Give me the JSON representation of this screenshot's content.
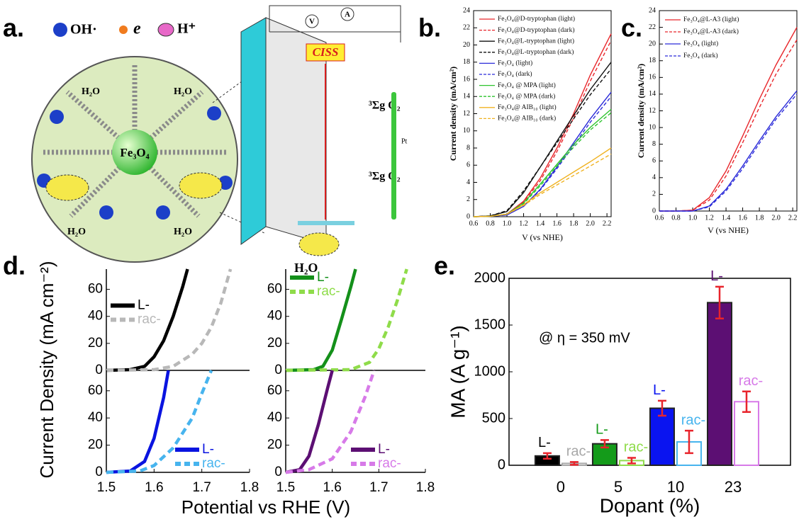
{
  "panel_labels": [
    "a.",
    "b.",
    "c.",
    "d.",
    "e."
  ],
  "diagram": {
    "legend": [
      "OH·",
      "e",
      "H⁺"
    ],
    "core": "Fe₃O₄",
    "water": "H₂O",
    "ciss": "CISS",
    "oxygen": "³Σg O₂",
    "meters": [
      "V",
      "A"
    ],
    "electrode": "Pt"
  },
  "panel_d_axes": {
    "ylabel": "Current Density (mA cm⁻²)",
    "xlabel": "Potential vs RHE (V)"
  },
  "chart_data": [
    {
      "type": "line",
      "ylabel": "Current density (mA/cm²)",
      "xlabel": "V (vs NHE)",
      "x": [
        0.6,
        0.8,
        1.0,
        1.2,
        1.4,
        1.6,
        1.8,
        2.0,
        2.25
      ],
      "xlim": [
        0.6,
        2.25
      ],
      "ylim": [
        0,
        24
      ],
      "xticks": [
        0.6,
        0.8,
        {
          "value": 1,
          "label": "1.0"
        },
        1.2,
        1.4,
        1.6,
        1.8,
        {
          "value": 2,
          "label": "2.0"
        },
        2.2
      ],
      "yticks": [
        0,
        2,
        4,
        6,
        8,
        10,
        12,
        14,
        16,
        18,
        20,
        22,
        24
      ],
      "legend": "upper left",
      "series": [
        {
          "name": "Fe₃O₄@D-tryptophan (light)",
          "color": "#e8262b",
          "dash": false,
          "values": [
            0,
            0.05,
            0.3,
            1.8,
            4.5,
            8,
            12,
            16.5,
            21.3
          ]
        },
        {
          "name": "Fe₃O₄@D-tryptophan (dark)",
          "color": "#e8262b",
          "dash": true,
          "values": [
            0,
            0.05,
            0.3,
            1.7,
            4.2,
            7.6,
            11.5,
            15.8,
            20.5
          ]
        },
        {
          "name": "Fe₃O₄@L-tryptophan (light)",
          "color": "#111111",
          "dash": false,
          "values": [
            0,
            0.1,
            0.6,
            2.8,
            5.8,
            8.8,
            11.8,
            14.8,
            18
          ]
        },
        {
          "name": "Fe₃O₄@L-tryptophan (dark)",
          "color": "#111111",
          "dash": true,
          "values": [
            0,
            0.1,
            0.7,
            3,
            5.8,
            8.6,
            11.4,
            14.2,
            17.2
          ]
        },
        {
          "name": "Fe₃O₄ (light)",
          "color": "#2b2bd9",
          "dash": false,
          "values": [
            0,
            0.05,
            0.2,
            1.2,
            3.2,
            5.8,
            8.6,
            11.4,
            14.5
          ]
        },
        {
          "name": "Fe₃O₄ (dark)",
          "color": "#2b2bd9",
          "dash": true,
          "values": [
            0,
            0.05,
            0.2,
            1.2,
            3.1,
            5.6,
            8.3,
            11,
            14
          ]
        },
        {
          "name": "Fe₃O₄ @ MPA (light)",
          "color": "#2ec42e",
          "dash": false,
          "values": [
            0,
            0.05,
            0.3,
            1.6,
            3.8,
            6.1,
            8.4,
            10.4,
            12.5
          ]
        },
        {
          "name": "Fe₃O₄ @ MPA (dark)",
          "color": "#2ec42e",
          "dash": true,
          "values": [
            0,
            0.05,
            0.3,
            1.5,
            3.6,
            5.9,
            8.1,
            10.1,
            12.1
          ]
        },
        {
          "name": "Fe₃O₄@ AIB₁₀ (light)",
          "color": "#f0b323",
          "dash": false,
          "values": [
            0,
            0.05,
            0.3,
            1.4,
            2.8,
            4,
            5.2,
            6.4,
            8
          ]
        },
        {
          "name": "Fe₃O₄@ AIB₁₀ (dark)",
          "color": "#f0b323",
          "dash": true,
          "values": [
            0,
            0.05,
            0.3,
            1.3,
            2.6,
            3.7,
            4.8,
            5.9,
            7.3
          ]
        }
      ]
    },
    {
      "type": "line",
      "ylabel": "Current density (mA/cm²)",
      "xlabel": "V (vs NHE)",
      "x": [
        0.6,
        0.8,
        1.0,
        1.2,
        1.4,
        1.6,
        1.8,
        2.0,
        2.25
      ],
      "xlim": [
        0.6,
        2.25
      ],
      "ylim": [
        0,
        24
      ],
      "xticks": [
        0.6,
        0.8,
        {
          "value": 1,
          "label": "1.0"
        },
        1.2,
        1.4,
        1.6,
        1.8,
        {
          "value": 2,
          "label": "2.0"
        },
        2.2
      ],
      "yticks": [
        0,
        2,
        4,
        6,
        8,
        10,
        12,
        14,
        16,
        18,
        20,
        22,
        24
      ],
      "legend": "upper left",
      "series": [
        {
          "name": "Fe₃O₄@L-A3 (light)",
          "color": "#e8262b",
          "dash": false,
          "values": [
            0,
            0,
            0.1,
            1.6,
            4.8,
            9,
            13.4,
            17.5,
            22
          ]
        },
        {
          "name": "Fe₃O₄@L-A3 (dark)",
          "color": "#e8262b",
          "dash": true,
          "values": [
            0,
            0,
            0.1,
            1.3,
            4.2,
            8.2,
            12.4,
            16.4,
            20.5
          ]
        },
        {
          "name": "Fe₃O₄ (light)",
          "color": "#2b2bd9",
          "dash": false,
          "values": [
            0,
            0,
            0,
            0.6,
            2.6,
            5.4,
            8.4,
            11.3,
            14.4
          ]
        },
        {
          "name": "Fe₃O₄ (dark)",
          "color": "#2b2bd9",
          "dash": true,
          "values": [
            0,
            0,
            0,
            0.5,
            2.4,
            5.1,
            8.1,
            11,
            14
          ]
        }
      ]
    },
    {
      "type": "line",
      "xlim": [
        1.5,
        1.8
      ],
      "ylim": [
        0,
        75
      ],
      "yticks": [
        0,
        20,
        40,
        60
      ],
      "legend": "center left",
      "series": [
        {
          "name": "L-",
          "color": "#000000",
          "dash": false,
          "x": [
            1.5,
            1.55,
            1.58,
            1.6,
            1.62,
            1.64,
            1.66,
            1.67
          ],
          "values": [
            0,
            0.5,
            3,
            10,
            22,
            40,
            62,
            75
          ]
        },
        {
          "name": "rac-",
          "color": "#b8b8b8",
          "dash": true,
          "x": [
            1.5,
            1.6,
            1.64,
            1.68,
            1.7,
            1.72,
            1.74,
            1.76
          ],
          "values": [
            0,
            0.5,
            3,
            12,
            20,
            32,
            50,
            75
          ]
        }
      ]
    },
    {
      "type": "line",
      "xlim": [
        1.5,
        1.8
      ],
      "ylim": [
        0,
        75
      ],
      "yticks": [
        0,
        20,
        40,
        60
      ],
      "legend": "upper left",
      "series": [
        {
          "name": "L-",
          "color": "#14901a",
          "dash": false,
          "x": [
            1.5,
            1.56,
            1.58,
            1.6,
            1.62,
            1.64,
            1.65
          ],
          "values": [
            0,
            0.5,
            3,
            15,
            38,
            62,
            75
          ]
        },
        {
          "name": "rac-",
          "color": "#8fdc4a",
          "dash": true,
          "x": [
            1.5,
            1.64,
            1.68,
            1.7,
            1.72,
            1.74,
            1.76
          ],
          "values": [
            0,
            0.5,
            6,
            16,
            32,
            52,
            75
          ]
        }
      ]
    },
    {
      "type": "line",
      "xlim": [
        1.5,
        1.8
      ],
      "ylim": [
        0,
        75
      ],
      "xticks": [
        1.5,
        1.6,
        1.7,
        1.8
      ],
      "yticks": [
        0,
        20,
        40,
        60
      ],
      "legend": "lower right",
      "series": [
        {
          "name": "L-",
          "color": "#0a14e0",
          "dash": false,
          "x": [
            1.5,
            1.55,
            1.58,
            1.6,
            1.62,
            1.63
          ],
          "values": [
            0,
            1,
            8,
            25,
            55,
            75
          ]
        },
        {
          "name": "rac-",
          "color": "#47b4ee",
          "dash": true,
          "x": [
            1.5,
            1.57,
            1.6,
            1.64,
            1.68,
            1.7,
            1.72
          ],
          "values": [
            0,
            1,
            5,
            18,
            40,
            58,
            75
          ]
        }
      ]
    },
    {
      "type": "line",
      "xlim": [
        1.5,
        1.8
      ],
      "ylim": [
        0,
        75
      ],
      "xticks": [
        1.5,
        1.6,
        1.7,
        1.8
      ],
      "yticks": [
        0,
        20,
        40,
        60
      ],
      "legend": "lower right",
      "series": [
        {
          "name": "L-",
          "color": "#5c0f73",
          "dash": false,
          "x": [
            1.5,
            1.53,
            1.55,
            1.57,
            1.59,
            1.6
          ],
          "values": [
            0,
            2,
            12,
            35,
            62,
            75
          ]
        },
        {
          "name": "rac-",
          "color": "#d77ae8",
          "dash": true,
          "x": [
            1.5,
            1.55,
            1.6,
            1.64,
            1.67,
            1.69
          ],
          "values": [
            0,
            2,
            10,
            30,
            55,
            75
          ]
        }
      ]
    },
    {
      "type": "bar",
      "ylabel": "MA (A g⁻¹)",
      "xlabel": "Dopant (%)",
      "annotation": "@ η = 350 mV",
      "categories": [
        "0",
        "5",
        "10",
        "23"
      ],
      "ylim": [
        0,
        2000
      ],
      "yticks": [
        0,
        500,
        1000,
        1500,
        2000
      ],
      "error_color": "#e8242c",
      "series": [
        {
          "name": "L-",
          "fill": "solid",
          "colors": [
            "#000000",
            "#149b1a",
            "#0a14f0",
            "#5c0f73"
          ],
          "values": [
            100,
            230,
            610,
            1740
          ],
          "errors": [
            30,
            40,
            80,
            170
          ]
        },
        {
          "name": "rac-",
          "fill": "outline",
          "colors": [
            "#a8a8a8",
            "#8fdc4a",
            "#47b4ee",
            "#d77ae8"
          ],
          "values": [
            20,
            50,
            250,
            680
          ],
          "errors": [
            15,
            30,
            120,
            110
          ]
        }
      ]
    }
  ]
}
